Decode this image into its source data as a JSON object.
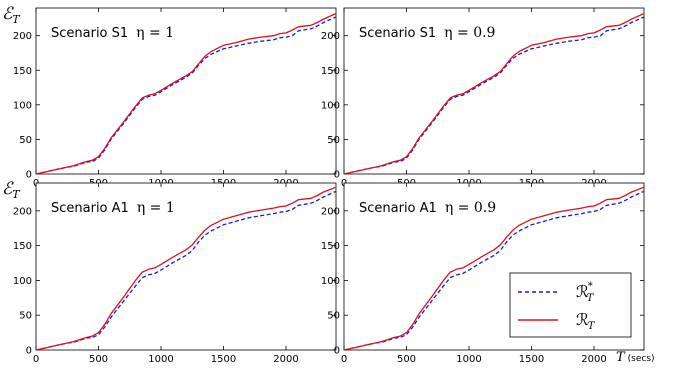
{
  "figure": {
    "ylabel_main": "ℰ",
    "ylabel_sub": "T",
    "xlabel_main": "T",
    "xlabel_unit": "(secs)"
  },
  "legend": {
    "placement": "bottom-right of lower-right panel",
    "entries": [
      {
        "main": "ℛ",
        "sup": "*",
        "sub": "T",
        "color": "#1a1adb",
        "dash": true
      },
      {
        "main": "ℛ",
        "sup": "",
        "sub": "T",
        "color": "#e0101a",
        "dash": false
      }
    ]
  },
  "chart_data": [
    {
      "type": "line",
      "panel": "top-left",
      "scenario_label": "Scenario S1",
      "eta_label": "η = 1",
      "xlim": [
        0,
        2400
      ],
      "ylim": [
        0,
        240
      ],
      "xticks": [
        0,
        500,
        1000,
        1500,
        2000
      ],
      "yticks": [
        0,
        50,
        100,
        150,
        200
      ],
      "x": [
        0,
        100,
        200,
        250,
        300,
        350,
        400,
        450,
        500,
        550,
        600,
        700,
        800,
        850,
        900,
        950,
        1000,
        1100,
        1200,
        1250,
        1300,
        1350,
        1400,
        1500,
        1600,
        1700,
        1800,
        1900,
        1950,
        2000,
        2050,
        2100,
        2200,
        2250,
        2300,
        2400
      ],
      "series": [
        {
          "name": "ℛ*_T",
          "color": "#1a1adb",
          "dash": true,
          "values": [
            0,
            4,
            8,
            10,
            11,
            14,
            17,
            18,
            23,
            35,
            50,
            73,
            97,
            108,
            112,
            114,
            119,
            130,
            140,
            146,
            157,
            167,
            173,
            181,
            185,
            189,
            192,
            194,
            197,
            198,
            200,
            207,
            210,
            214,
            219,
            227
          ]
        },
        {
          "name": "ℛ_T",
          "color": "#e0101a",
          "dash": false,
          "values": [
            0,
            4,
            8,
            10,
            12,
            15,
            18,
            20,
            25,
            37,
            52,
            75,
            99,
            110,
            114,
            116,
            121,
            132,
            142,
            148,
            159,
            170,
            177,
            186,
            190,
            195,
            198,
            200,
            203,
            204,
            208,
            213,
            215,
            219,
            224,
            232
          ]
        }
      ]
    },
    {
      "type": "line",
      "panel": "top-right",
      "scenario_label": "Scenario S1",
      "eta_label": "η = 0.9",
      "xlim": [
        0,
        2400
      ],
      "ylim": [
        0,
        240
      ],
      "xticks": [
        0,
        500,
        1000,
        1500,
        2000
      ],
      "yticks": [
        0,
        50,
        100,
        150,
        200
      ],
      "x": [
        0,
        100,
        200,
        250,
        300,
        350,
        400,
        450,
        500,
        550,
        600,
        700,
        800,
        850,
        900,
        950,
        1000,
        1100,
        1200,
        1250,
        1300,
        1350,
        1400,
        1500,
        1600,
        1700,
        1800,
        1900,
        1950,
        2000,
        2050,
        2100,
        2200,
        2250,
        2300,
        2400
      ],
      "series": [
        {
          "name": "ℛ*_T",
          "color": "#1a1adb",
          "dash": true,
          "values": [
            0,
            4,
            8,
            10,
            11,
            14,
            17,
            18,
            23,
            35,
            50,
            73,
            97,
            108,
            112,
            114,
            119,
            130,
            140,
            146,
            157,
            167,
            173,
            181,
            185,
            189,
            192,
            194,
            197,
            198,
            200,
            207,
            210,
            214,
            219,
            227
          ]
        },
        {
          "name": "ℛ_T",
          "color": "#e0101a",
          "dash": false,
          "values": [
            0,
            4,
            8,
            10,
            12,
            15,
            18,
            20,
            25,
            37,
            52,
            75,
            99,
            110,
            114,
            116,
            121,
            132,
            142,
            148,
            159,
            170,
            177,
            186,
            190,
            195,
            198,
            200,
            203,
            204,
            208,
            213,
            215,
            219,
            224,
            232
          ]
        }
      ]
    },
    {
      "type": "line",
      "panel": "bottom-left",
      "scenario_label": "Scenario A1",
      "eta_label": "η = 1",
      "xlim": [
        0,
        2400
      ],
      "ylim": [
        0,
        240
      ],
      "xticks": [
        0,
        500,
        1000,
        1500,
        2000
      ],
      "yticks": [
        0,
        50,
        100,
        150,
        200
      ],
      "x": [
        0,
        100,
        200,
        250,
        300,
        350,
        400,
        450,
        500,
        550,
        600,
        700,
        800,
        850,
        900,
        950,
        1000,
        1100,
        1200,
        1250,
        1300,
        1350,
        1400,
        1500,
        1600,
        1700,
        1800,
        1900,
        1950,
        2000,
        2050,
        2100,
        2200,
        2250,
        2300,
        2400
      ],
      "series": [
        {
          "name": "ℛ*_T",
          "color": "#1a1adb",
          "dash": true,
          "values": [
            0,
            4,
            8,
            10,
            11,
            14,
            17,
            18,
            22,
            33,
            47,
            70,
            93,
            104,
            108,
            110,
            115,
            126,
            136,
            143,
            155,
            165,
            171,
            180,
            185,
            190,
            193,
            196,
            198,
            199,
            202,
            208,
            211,
            215,
            220,
            228
          ]
        },
        {
          "name": "ℛ_T",
          "color": "#e0101a",
          "dash": false,
          "values": [
            0,
            4,
            8,
            10,
            12,
            15,
            18,
            20,
            25,
            37,
            52,
            76,
            101,
            112,
            116,
            118,
            123,
            134,
            144,
            151,
            162,
            172,
            179,
            188,
            193,
            198,
            201,
            204,
            206,
            207,
            211,
            216,
            218,
            222,
            227,
            234
          ]
        }
      ]
    },
    {
      "type": "line",
      "panel": "bottom-right",
      "scenario_label": "Scenario A1",
      "eta_label": "η = 0.9",
      "xlim": [
        0,
        2400
      ],
      "ylim": [
        0,
        240
      ],
      "xticks": [
        0,
        500,
        1000,
        1500,
        2000
      ],
      "yticks": [
        0,
        50,
        100,
        150,
        200
      ],
      "x": [
        0,
        100,
        200,
        250,
        300,
        350,
        400,
        450,
        500,
        550,
        600,
        700,
        800,
        850,
        900,
        950,
        1000,
        1100,
        1200,
        1250,
        1300,
        1350,
        1400,
        1500,
        1600,
        1700,
        1800,
        1900,
        1950,
        2000,
        2050,
        2100,
        2200,
        2250,
        2300,
        2400
      ],
      "series": [
        {
          "name": "ℛ*_T",
          "color": "#1a1adb",
          "dash": true,
          "values": [
            0,
            4,
            8,
            10,
            11,
            14,
            17,
            18,
            22,
            33,
            47,
            70,
            93,
            104,
            108,
            110,
            115,
            126,
            136,
            143,
            155,
            165,
            171,
            180,
            185,
            190,
            193,
            196,
            198,
            199,
            202,
            208,
            211,
            215,
            220,
            228
          ]
        },
        {
          "name": "ℛ_T",
          "color": "#e0101a",
          "dash": false,
          "values": [
            0,
            4,
            8,
            10,
            12,
            15,
            18,
            20,
            25,
            37,
            52,
            76,
            101,
            112,
            116,
            118,
            123,
            134,
            144,
            151,
            162,
            172,
            179,
            188,
            193,
            198,
            201,
            204,
            206,
            207,
            211,
            216,
            218,
            222,
            227,
            234
          ]
        }
      ]
    }
  ]
}
